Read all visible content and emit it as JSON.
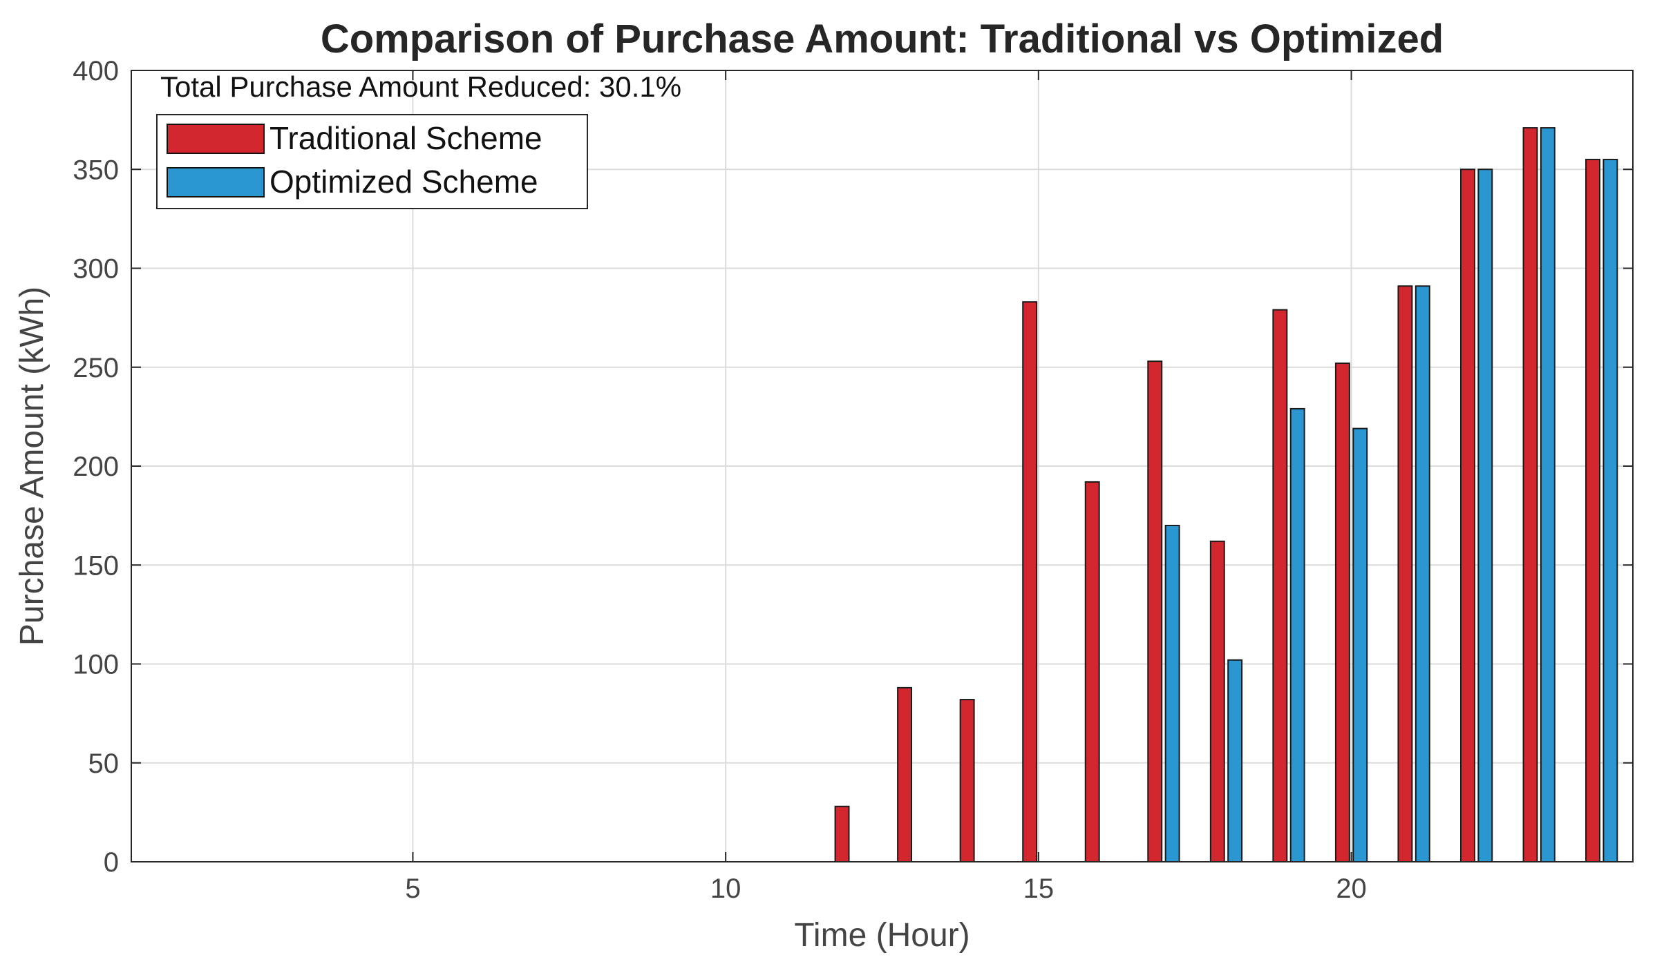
{
  "chart_data": {
    "type": "bar",
    "title": "Comparison of Purchase Amount: Traditional vs Optimized",
    "xlabel": "Time (Hour)",
    "ylabel": "Purchase Amount (kWh)",
    "annotation": "Total Purchase Amount Reduced: 30.1%",
    "xlim": [
      0.5,
      24.5
    ],
    "ylim": [
      0,
      400
    ],
    "x_ticks": [
      5,
      10,
      15,
      20
    ],
    "y_ticks": [
      0,
      50,
      100,
      150,
      200,
      250,
      300,
      350,
      400
    ],
    "grid": true,
    "legend_position": "top-left",
    "x": [
      1,
      2,
      3,
      4,
      5,
      6,
      7,
      8,
      9,
      10,
      11,
      12,
      13,
      14,
      15,
      16,
      17,
      18,
      19,
      20,
      21,
      22,
      23,
      24
    ],
    "series": [
      {
        "name": "Traditional Scheme",
        "color": "#d2272f",
        "values": [
          0,
          0,
          0,
          0,
          0,
          0,
          0,
          0,
          0,
          0,
          0,
          28,
          88,
          82,
          283,
          192,
          253,
          162,
          279,
          252,
          291,
          350,
          371,
          355
        ]
      },
      {
        "name": "Optimized Scheme",
        "color": "#2b97d1",
        "values": [
          0,
          0,
          0,
          0,
          0,
          0,
          0,
          0,
          0,
          0,
          0,
          0,
          0,
          0,
          0,
          0,
          170,
          102,
          229,
          219,
          291,
          350,
          371,
          355
        ]
      }
    ]
  }
}
